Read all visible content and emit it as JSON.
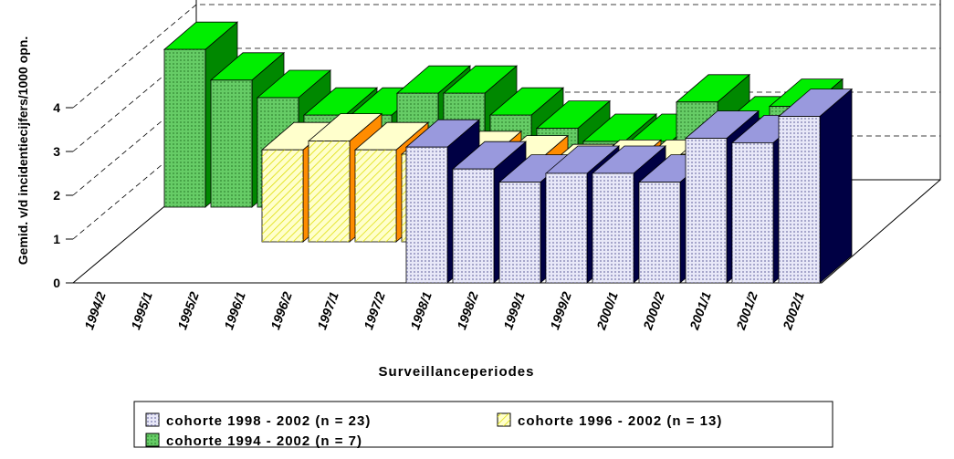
{
  "chart_data": {
    "type": "bar3d",
    "y_label": "Gemid. v/d incidentiecijfers/1000 opn.",
    "x_label": "Surveillanceperiodes",
    "categories": [
      "1994/2",
      "1995/1",
      "1995/2",
      "1996/1",
      "1996/2",
      "1997/1",
      "1997/2",
      "1998/1",
      "1998/2",
      "1999/1",
      "1999/2",
      "2000/1",
      "2000/2",
      "2001/1",
      "2001/2",
      "2002/1"
    ],
    "ylim": [
      0,
      5
    ],
    "yticks": [
      0,
      1,
      2,
      3,
      4
    ],
    "grid": true,
    "series": [
      {
        "name": "cohorte 1998 - 2002 (n = 23)",
        "color": "#e8e8f8",
        "top": "#9999dd",
        "side": "#000044",
        "values": [
          null,
          null,
          null,
          null,
          null,
          null,
          null,
          3.1,
          2.6,
          2.3,
          2.5,
          2.5,
          2.3,
          3.3,
          3.2,
          3.8
        ]
      },
      {
        "name": "cohorte 1996 - 2002 (n = 13)",
        "color": "#ffffcc",
        "top": "#ffffcc",
        "side": "#ff8c00",
        "values": [
          null,
          null,
          null,
          null,
          2.1,
          2.3,
          2.1,
          2.0,
          1.9,
          1.8,
          1.6,
          1.7,
          1.7,
          2.0,
          2.2,
          2.1
        ]
      },
      {
        "name": "cohorte 1994 - 2002 (n = 7)",
        "color": "#66cc66",
        "top": "#00ee00",
        "side": "#008800",
        "values": [
          null,
          null,
          3.6,
          2.9,
          2.5,
          2.1,
          2.1,
          2.6,
          2.6,
          2.1,
          1.8,
          1.5,
          1.5,
          2.4,
          1.9,
          2.3
        ]
      }
    ]
  }
}
